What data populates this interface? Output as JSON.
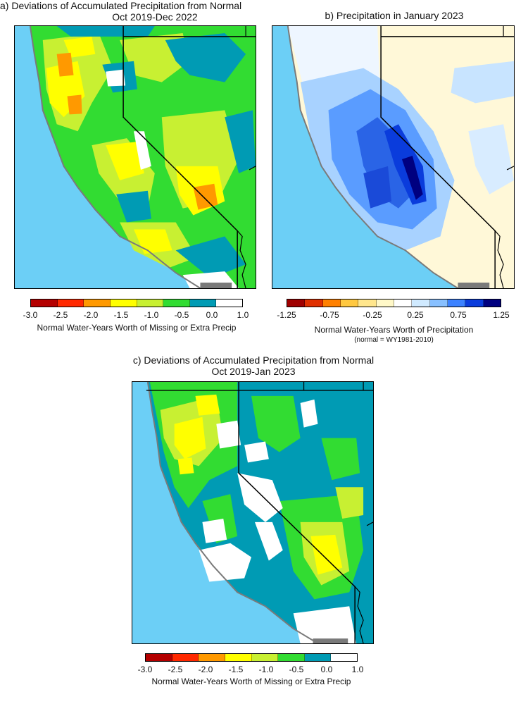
{
  "panels": {
    "a": {
      "title_line1": "a) Deviations of Accumulated Precipitation from Normal",
      "title_line2": "Oct 2019-Dec 2022"
    },
    "b": {
      "title_line1": "b) Precipitation in January 2023"
    },
    "c": {
      "title_line1": "c) Deviations of Accumulated Precipitation from Normal",
      "title_line2": "Oct 2019-Jan 2023"
    }
  },
  "deviation_colorbar": {
    "ticks": [
      "-3.0",
      "-2.5",
      "-2.0",
      "-1.5",
      "-1.0",
      "-0.5",
      "0.0",
      "1.0"
    ],
    "colors": [
      "#b40000",
      "#ff2800",
      "#ff9900",
      "#ffff00",
      "#c8f032",
      "#32dc32",
      "#009bb4",
      "#ffffff"
    ],
    "caption": "Normal Water-Years Worth of Missing or Extra Precip"
  },
  "precip_colorbar": {
    "ticks": [
      "-1.25",
      "-0.75",
      "-0.25",
      "0.25",
      "0.75",
      "1.25"
    ],
    "colors": [
      "#a00000",
      "#e03000",
      "#ff8000",
      "#ffc840",
      "#ffe68c",
      "#fff8c8",
      "#ffffff",
      "#d0eaff",
      "#88c0ff",
      "#3c82ff",
      "#0a3cdc",
      "#000080"
    ],
    "caption": "Normal Water-Years Worth of Precipitation",
    "note": "(normal = WY1981-2010)"
  },
  "map_colors": {
    "ocean": "#6ccff6",
    "coast_gray": "#7a7a7a"
  }
}
